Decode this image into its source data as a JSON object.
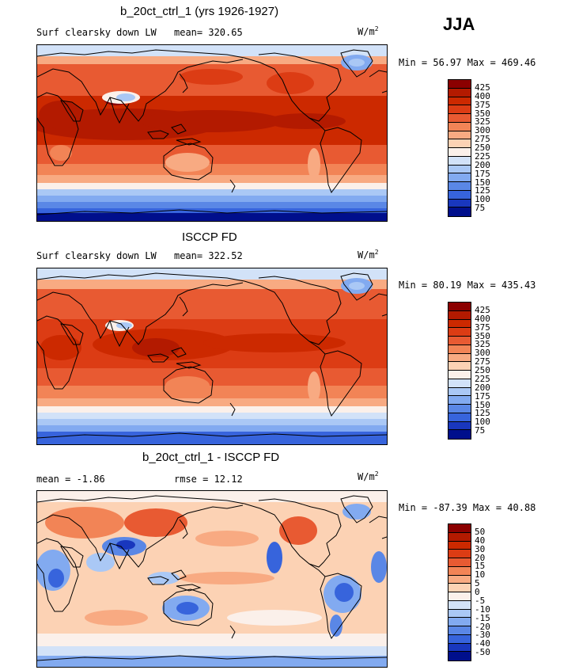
{
  "season": "JJA",
  "panels": [
    {
      "title": "b_20ct_ctrl_1 (yrs 1926-1927)",
      "left_label": "Surf clearsky down LW",
      "mean_text": "mean= 320.65",
      "rmse_text": "",
      "units": "W/m",
      "units_sup": "2",
      "minmax": "Min =  56.97 Max = 469.46",
      "colorbar_labels": [
        "425",
        "400",
        "375",
        "350",
        "325",
        "300",
        "275",
        "250",
        "225",
        "200",
        "175",
        "150",
        "125",
        "100",
        "75"
      ],
      "colorbar_colors": [
        "#8b0000",
        "#b31a00",
        "#cc2900",
        "#dc3c14",
        "#e85a32",
        "#f28456",
        "#f8aa82",
        "#fcd2b4",
        "#fbf0ea",
        "#d2e2f8",
        "#aac8f5",
        "#82aaf0",
        "#5a87e6",
        "#3764dc",
        "#1937be",
        "#000f8c"
      ],
      "map_palette": "warm"
    },
    {
      "title": "ISCCP FD",
      "left_label": "Surf clearsky down LW",
      "mean_text": "mean= 322.52",
      "rmse_text": "",
      "units": "W/m",
      "units_sup": "2",
      "minmax": "Min =  80.19 Max = 435.43",
      "colorbar_labels": [
        "425",
        "400",
        "375",
        "350",
        "325",
        "300",
        "275",
        "250",
        "225",
        "200",
        "175",
        "150",
        "125",
        "100",
        "75"
      ],
      "colorbar_colors": [
        "#8b0000",
        "#b31a00",
        "#cc2900",
        "#dc3c14",
        "#e85a32",
        "#f28456",
        "#f8aa82",
        "#fcd2b4",
        "#fbf0ea",
        "#d2e2f8",
        "#aac8f5",
        "#82aaf0",
        "#5a87e6",
        "#3764dc",
        "#1937be",
        "#000f8c"
      ],
      "map_palette": "warm"
    },
    {
      "title": "b_20ct_ctrl_1 - ISCCP FD",
      "left_label": "mean =  -1.86",
      "mean_text": "",
      "rmse_text": "rmse =  12.12",
      "units": "W/m",
      "units_sup": "2",
      "minmax": "Min = -87.39 Max =  40.88",
      "colorbar_labels": [
        "50",
        "40",
        "30",
        "20",
        "15",
        "10",
        "5",
        "0",
        "-5",
        "-10",
        "-15",
        "-20",
        "-30",
        "-40",
        "-50"
      ],
      "colorbar_colors": [
        "#8b0000",
        "#b31a00",
        "#cc2900",
        "#dc3c14",
        "#e85a32",
        "#f28456",
        "#f8aa82",
        "#fcd2b4",
        "#fbf0ea",
        "#d2e2f8",
        "#aac8f5",
        "#82aaf0",
        "#5a87e6",
        "#3764dc",
        "#1937be",
        "#000f8c"
      ],
      "map_palette": "diff"
    }
  ]
}
